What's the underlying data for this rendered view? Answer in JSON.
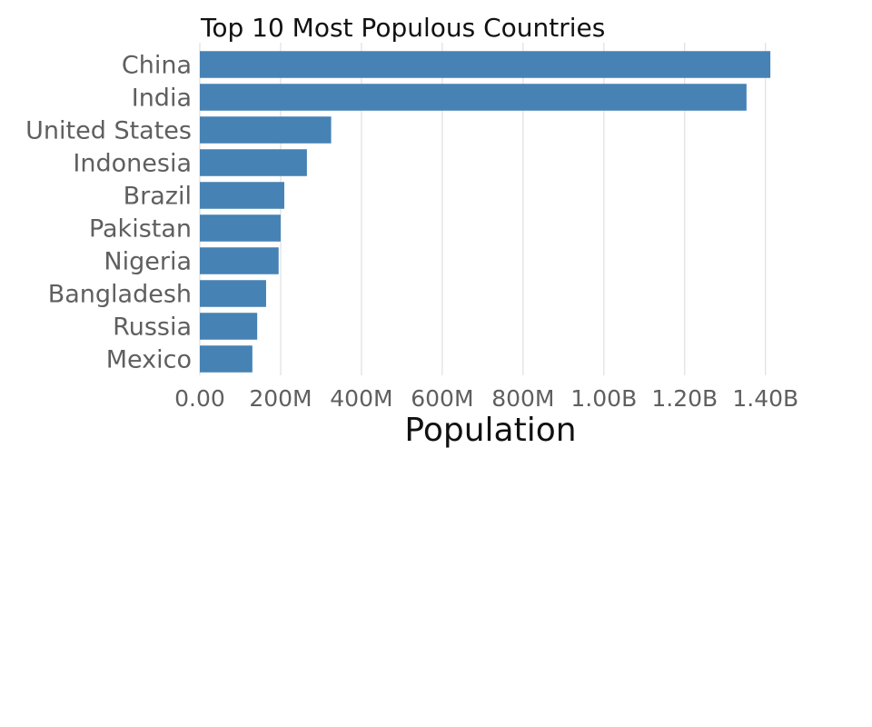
{
  "chart_data": {
    "type": "bar",
    "orientation": "horizontal",
    "title": "Top 10 Most Populous Countries",
    "xlabel": "Population",
    "ylabel": "",
    "categories": [
      "China",
      "India",
      "United States",
      "Indonesia",
      "Brazil",
      "Pakistan",
      "Nigeria",
      "Bangladesh",
      "Russia",
      "Mexico"
    ],
    "values": [
      1412000000,
      1353000000,
      325000000,
      265000000,
      209000000,
      200000000,
      195000000,
      164000000,
      142000000,
      130000000
    ],
    "xlim": [
      0,
      1450000000
    ],
    "xticks": [
      0,
      200000000,
      400000000,
      600000000,
      800000000,
      1000000000,
      1200000000,
      1400000000
    ],
    "xtick_labels": [
      "0.00",
      "200M",
      "400M",
      "600M",
      "800M",
      "1.00B",
      "1.20B",
      "1.40B"
    ],
    "grid": "vertical",
    "legend": "none",
    "bar_color": "#4682b4",
    "gridline_color": "#d9d9d9"
  }
}
